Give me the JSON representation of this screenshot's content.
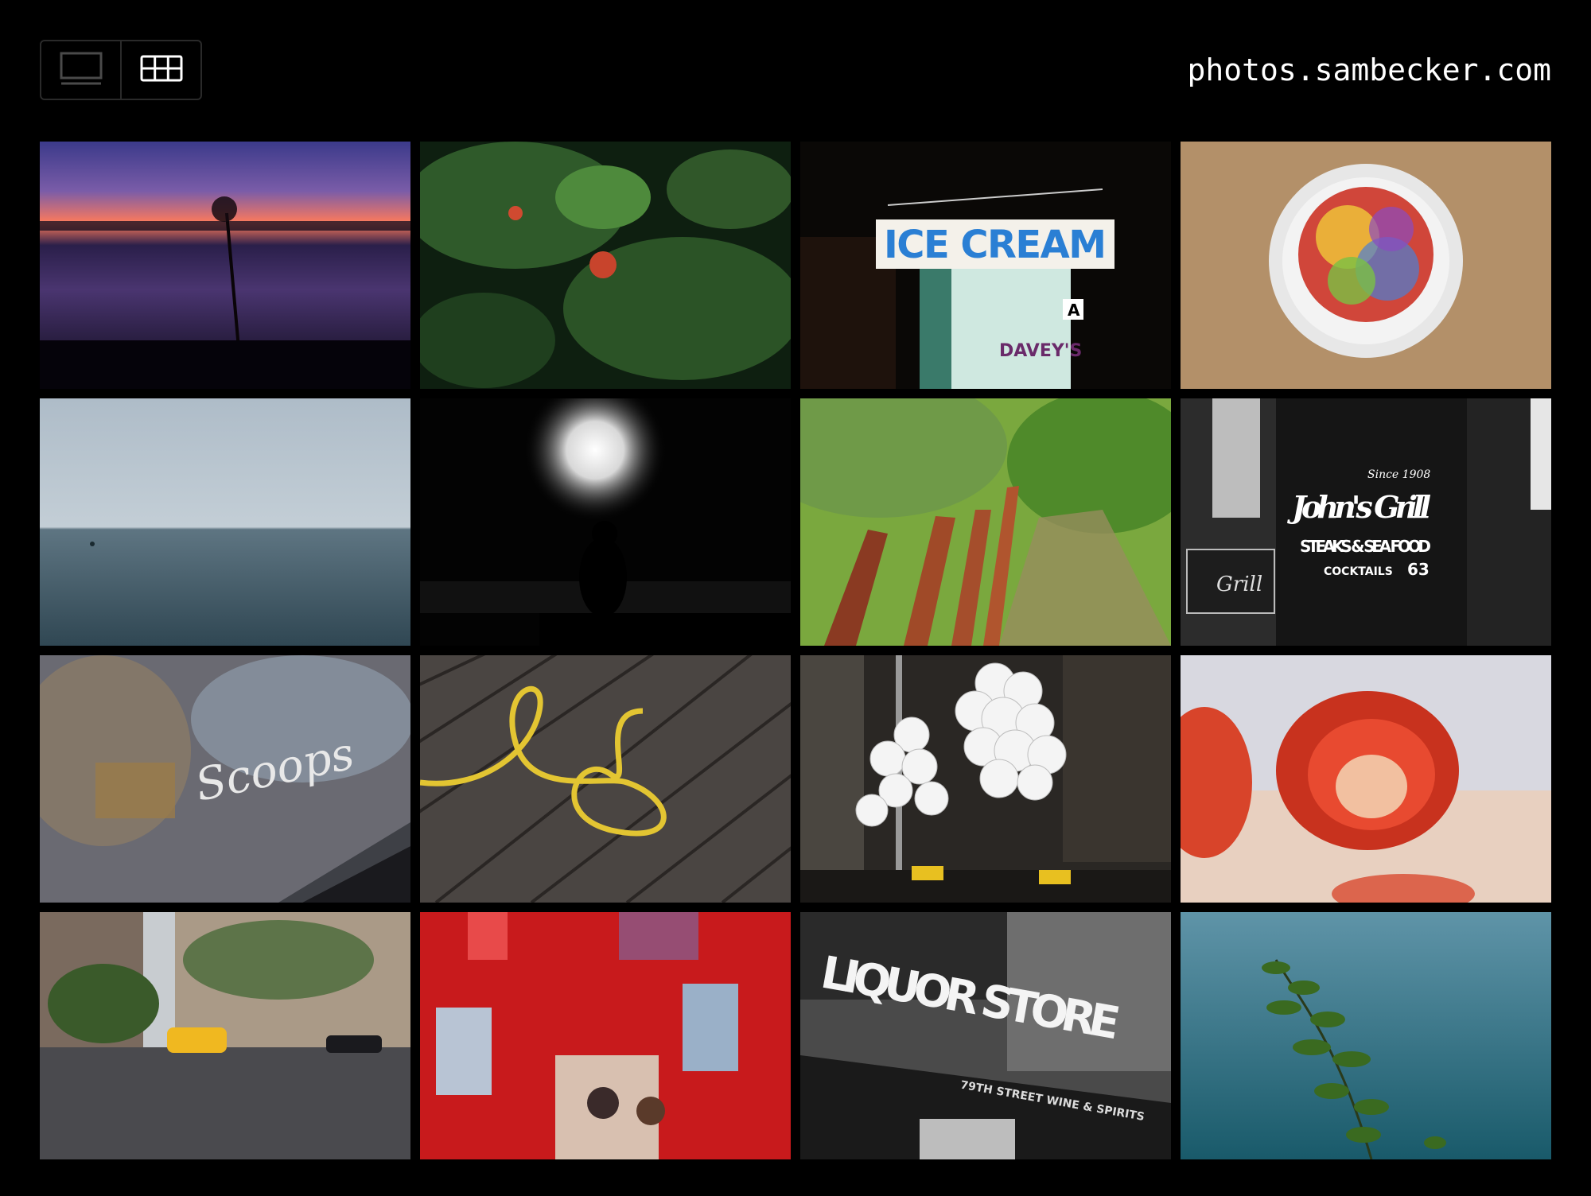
{
  "header": {
    "site_title": "photos.sambecker.com",
    "view_modes": [
      {
        "name": "full-frame-view",
        "icon": "single-frame-icon",
        "active": false
      },
      {
        "name": "grid-view",
        "icon": "grid-icon",
        "active": true
      }
    ]
  },
  "photos": [
    {
      "subject": "dandelion-sunset"
    },
    {
      "subject": "strawberry-plant"
    },
    {
      "subject": "ice-cream-shop",
      "sign_text": "ICE CREAM",
      "shop_text": "DAVEY'S",
      "letter": "A"
    },
    {
      "subject": "cereal-bowl"
    },
    {
      "subject": "ocean-horizon"
    },
    {
      "subject": "fireworks"
    },
    {
      "subject": "blurred-fence-path"
    },
    {
      "subject": "johns-grill-sign",
      "sign_since": "Since 1908",
      "sign_name": "John's Grill",
      "sign_sub": "STEAKS & SEA FOOD",
      "sign_small": "COCKTAILS",
      "sign_num": "63",
      "side_sign": "Grill"
    },
    {
      "subject": "scoops-window",
      "window_text": "Scoops"
    },
    {
      "subject": "yellow-cable-deck"
    },
    {
      "subject": "white-balloons"
    },
    {
      "subject": "tomato"
    },
    {
      "subject": "yellow-taxi-street"
    },
    {
      "subject": "red-sculpture"
    },
    {
      "subject": "liquor-store",
      "sign_text": "LIQUOR STORE",
      "awning_text": "79TH STREET WINE & SPIRITS"
    },
    {
      "subject": "leaf-over-water"
    }
  ],
  "colors": {
    "background": "#000000",
    "text": "#ffffff",
    "border": "#2a2a2a"
  }
}
